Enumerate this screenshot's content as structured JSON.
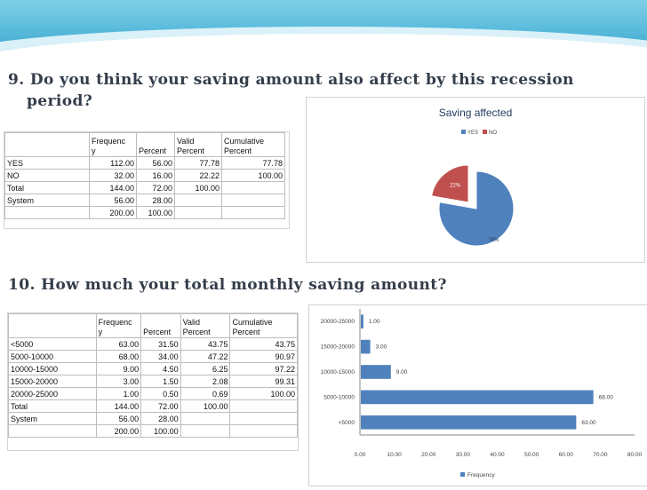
{
  "q9": {
    "title_line1": "9. Do you think your saving amount also affect by this recession",
    "title_line2": "period?"
  },
  "q10": {
    "title": "10. How much your total monthly saving amount?"
  },
  "table1": {
    "headers": [
      "",
      "Frequenc\ny",
      "Percent",
      "Valid\nPercent",
      "Cumulative\nPercent"
    ],
    "rows": [
      [
        "YES",
        "112.00",
        "56.00",
        "77.78",
        "77.78"
      ],
      [
        "NO",
        "32.00",
        "16.00",
        "22.22",
        "100.00"
      ],
      [
        "Total",
        "144.00",
        "72.00",
        "100.00",
        ""
      ],
      [
        "System",
        "56.00",
        "28.00",
        "",
        ""
      ],
      [
        "",
        "200.00",
        "100.00",
        "",
        ""
      ]
    ]
  },
  "table2": {
    "headers": [
      "",
      "Frequenc\ny",
      "Percent",
      "Valid\nPercent",
      "Cumulative\nPercent"
    ],
    "rows": [
      [
        "<5000",
        "63.00",
        "31.50",
        "43.75",
        "43.75"
      ],
      [
        "5000-10000",
        "68.00",
        "34.00",
        "47.22",
        "90.97"
      ],
      [
        "10000-15000",
        "9.00",
        "4.50",
        "6.25",
        "97.22"
      ],
      [
        "15000-20000",
        "3.00",
        "1.50",
        "2.08",
        "99.31"
      ],
      [
        "20000-25000",
        "1.00",
        "0.50",
        "0.69",
        "100.00"
      ],
      [
        "Total",
        "144.00",
        "72.00",
        "100.00",
        ""
      ],
      [
        "System",
        "56.00",
        "28.00",
        "",
        ""
      ],
      [
        "",
        "200.00",
        "100.00",
        "",
        ""
      ]
    ]
  },
  "chart_data": [
    {
      "type": "pie",
      "title": "Saving affected",
      "legend": [
        "YES",
        "NO"
      ],
      "values": [
        77.78,
        22.22
      ],
      "labels": [
        "78%",
        "22%"
      ],
      "colors": [
        "#4f81bd",
        "#c0504d"
      ],
      "legend_position": "top"
    },
    {
      "type": "bar",
      "orientation": "horizontal",
      "categories": [
        "<5000",
        "5000-10000",
        "10000-15000",
        "15000-20000",
        "20000-25000"
      ],
      "series": [
        {
          "name": "Frequency",
          "values": [
            63,
            68,
            9,
            3,
            1
          ]
        }
      ],
      "data_labels": [
        "63.00",
        "68.00",
        "9.00",
        "3.00",
        "1.00"
      ],
      "xlim": [
        0,
        80
      ],
      "xticks": [
        "0.00",
        "10.00",
        "20.00",
        "30.00",
        "40.00",
        "50.00",
        "60.00",
        "70.00",
        "80.00"
      ],
      "color": "#4f81bd",
      "legend_position": "bottom"
    }
  ]
}
